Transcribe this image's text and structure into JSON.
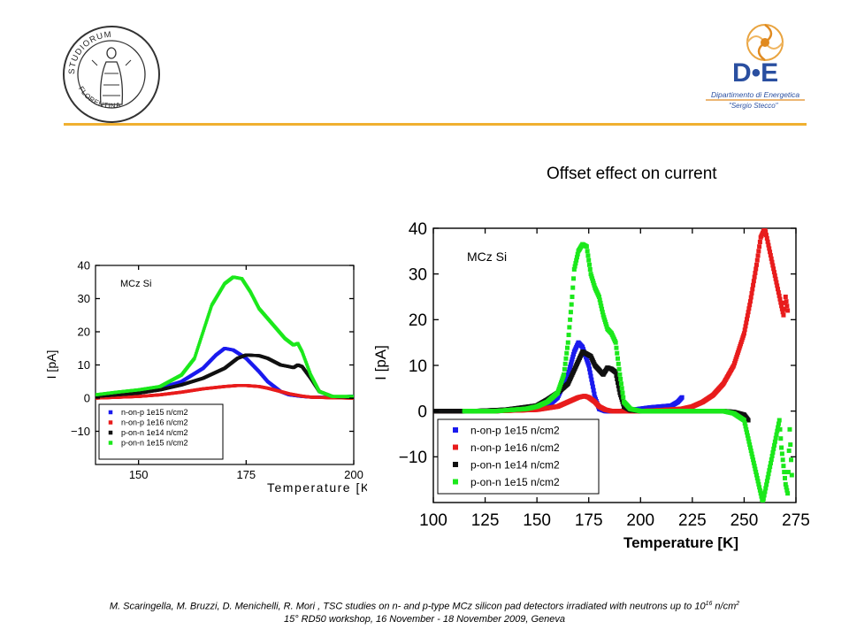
{
  "slide": {
    "title": "Offset effect on current",
    "rule_color": "#f0b030",
    "footer": {
      "line1_pre": "M. Scaringella, M. Bruzzi, D. Menichelli, R. Mori , TSC studies on n- and p-type MCz silicon pad detectors irradiated with neutrons up to 10",
      "line1_sup1": "16",
      "line1_mid": " n/cm",
      "line1_sup2": "2",
      "line2": "15° RD50 workshop, 16 November - 18 November 2009, Geneva"
    }
  },
  "logos": {
    "seal": {
      "icon": "university-seal-icon",
      "text_top": "STUDIORUM",
      "text_left": "FLORENTINA",
      "text_right": "UNIVERSITAS"
    },
    "department": {
      "icon": "dipartimento-energetica-logo",
      "mark": "D•E",
      "name": "Dipartimento di Energetica",
      "sub": "\"Sergio Stecco\"",
      "color": "#2a4fa0",
      "accent": "#e08a20"
    }
  },
  "chart_data": [
    {
      "type": "line",
      "title": "",
      "annotation": "MCz Si",
      "xlabel": "Temperature [K]",
      "ylabel": "I [pA]",
      "xlim": [
        140,
        200
      ],
      "ylim": [
        -20,
        40
      ],
      "xticks": [
        150,
        175,
        200
      ],
      "yticks": [
        40,
        30,
        20,
        10,
        0,
        -10
      ],
      "grid": false,
      "legend_position": "bottom-left",
      "series": [
        {
          "name": "n-on-p 1e15 n/cm2",
          "color": "#1a1aee",
          "x": [
            140,
            145,
            150,
            155,
            160,
            165,
            168,
            170,
            172,
            175,
            178,
            180,
            183,
            185,
            188,
            190,
            195,
            200
          ],
          "y": [
            0.5,
            0.8,
            1.5,
            3,
            5,
            9,
            13,
            15,
            14.5,
            12,
            8,
            5,
            2,
            1,
            0.5,
            0.3,
            0.2,
            0.6
          ]
        },
        {
          "name": "n-on-p 1e16 n/cm2",
          "color": "#e81c1c",
          "x": [
            140,
            150,
            155,
            160,
            165,
            170,
            173,
            175,
            178,
            180,
            183,
            185,
            188,
            190,
            195,
            200
          ],
          "y": [
            0,
            0.5,
            1,
            1.8,
            2.8,
            3.5,
            3.8,
            3.8,
            3.5,
            3,
            2,
            1.3,
            0.6,
            0.3,
            0.1,
            0
          ]
        },
        {
          "name": "p-on-n 1e14 n/cm2",
          "color": "#111111",
          "x": [
            140,
            145,
            150,
            155,
            160,
            165,
            170,
            173,
            175,
            178,
            180,
            183,
            185,
            186,
            187,
            188,
            190,
            192,
            195,
            200
          ],
          "y": [
            0.5,
            1,
            1.5,
            2.5,
            4,
            6,
            9,
            12,
            13,
            12.8,
            12,
            10,
            9.5,
            9.2,
            10,
            9.5,
            6,
            2,
            0.5,
            0.2
          ]
        },
        {
          "name": "p-on-n 1e15 n/cm2",
          "color": "#1be81b",
          "x": [
            140,
            145,
            150,
            155,
            160,
            163,
            165,
            167,
            170,
            172,
            174,
            176,
            178,
            180,
            182,
            184,
            186,
            187,
            188,
            190,
            192,
            195,
            200
          ],
          "y": [
            1,
            1.8,
            2.5,
            3.5,
            7,
            12,
            20,
            28,
            34.5,
            36.5,
            36,
            32,
            27,
            24,
            21,
            18,
            16,
            16.5,
            14,
            7,
            2,
            0.5,
            0.5
          ]
        }
      ]
    },
    {
      "type": "scatter",
      "title": "",
      "annotation": "MCz Si",
      "xlabel": "Temperature [K]",
      "ylabel": "I [pA]",
      "xlim": [
        100,
        275
      ],
      "ylim": [
        -20,
        40
      ],
      "xticks": [
        100,
        125,
        150,
        175,
        200,
        225,
        250,
        275
      ],
      "yticks": [
        40,
        30,
        20,
        10,
        0,
        -10
      ],
      "grid": false,
      "legend_position": "bottom-left",
      "series": [
        {
          "name": "n-on-p 1e15 n/cm2",
          "color": "#1a1aee",
          "x": [
            115,
            130,
            145,
            155,
            160,
            165,
            168,
            170,
            172,
            175,
            178,
            180,
            183,
            186,
            190,
            195,
            200,
            205,
            210,
            215,
            218,
            220
          ],
          "y": [
            0,
            0,
            0.3,
            1,
            3,
            8,
            13,
            15,
            14,
            10,
            3,
            0.5,
            0,
            0,
            0,
            0.2,
            0.5,
            0.8,
            1,
            1.2,
            2,
            3
          ]
        },
        {
          "name": "n-on-p 1e16 n/cm2",
          "color": "#e81c1c",
          "x": [
            100,
            130,
            150,
            160,
            165,
            170,
            173,
            175,
            178,
            180,
            183,
            186,
            190,
            200,
            210,
            220,
            225,
            230,
            235,
            240,
            245,
            250,
            253,
            256,
            258,
            260,
            268,
            269,
            270,
            271
          ],
          "y": [
            0,
            0,
            0.3,
            1,
            2,
            3,
            3.3,
            3,
            2,
            1,
            0.3,
            0,
            0,
            0,
            0.2,
            0.5,
            1,
            2,
            3.5,
            6,
            10,
            17,
            24,
            32,
            38,
            40,
            23,
            21,
            25,
            22
          ]
        },
        {
          "name": "p-on-n 1e14 n/cm2",
          "color": "#111111",
          "x": [
            100,
            110,
            120,
            135,
            150,
            155,
            160,
            165,
            168,
            170,
            172,
            174,
            176,
            178,
            180,
            182,
            184,
            186,
            188,
            190,
            192,
            195,
            200,
            220,
            240,
            245,
            250,
            252
          ],
          "y": [
            0,
            0,
            0,
            0.3,
            1.2,
            2.5,
            4,
            6,
            9,
            11,
            13,
            12.5,
            12,
            10,
            9,
            8,
            9.5,
            9.2,
            8.5,
            4,
            1,
            0.2,
            0,
            0,
            0,
            -0.2,
            -0.8,
            -2
          ]
        },
        {
          "name": "p-on-n 1e15 n/cm2",
          "color": "#1be81b",
          "x": [
            115,
            130,
            145,
            150,
            155,
            160,
            163,
            165,
            167,
            168,
            170,
            172,
            174,
            175,
            176,
            178,
            180,
            182,
            184,
            186,
            188,
            190,
            192,
            195,
            200,
            220,
            240,
            245,
            250,
            252,
            254,
            256,
            258,
            259,
            267,
            268,
            269,
            270,
            271,
            272,
            273
          ],
          "y": [
            0,
            0,
            0.5,
            1,
            2,
            4,
            8,
            15,
            25,
            31,
            35,
            36.5,
            36,
            33,
            30,
            27,
            25,
            21,
            18,
            17,
            15,
            8,
            2,
            0.5,
            0,
            0,
            0,
            -0.5,
            -2,
            -6,
            -10,
            -14,
            -18,
            -20,
            -2,
            -8,
            -12,
            -16,
            -18,
            -4,
            -14
          ]
        }
      ]
    }
  ]
}
